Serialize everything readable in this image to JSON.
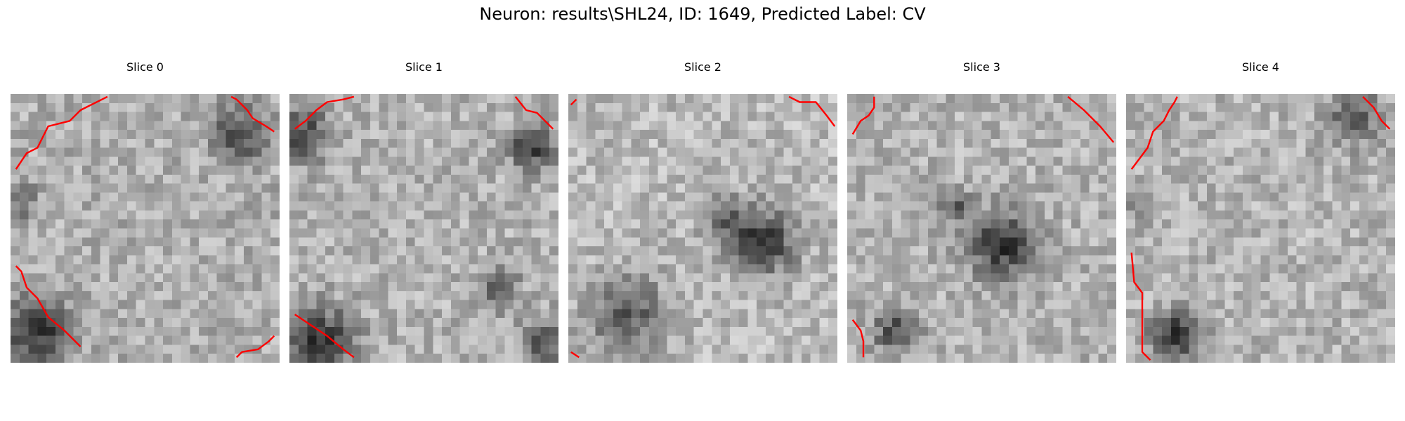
{
  "figure": {
    "suptitle": "Neuron: results\\SHL24, ID: 1649, Predicted Label: CV"
  },
  "panels": [
    {
      "title": "Slice 0",
      "seed": 11,
      "base_gray": 175,
      "dark_spots": [
        [
          0.03,
          0.4,
          0.07,
          0.25
        ],
        [
          0.1,
          0.88,
          0.12,
          0.5
        ],
        [
          0.85,
          0.15,
          0.1,
          0.4
        ]
      ],
      "contours": [
        [
          [
            0.02,
            0.28
          ],
          [
            0.04,
            0.25
          ],
          [
            0.06,
            0.22
          ],
          [
            0.1,
            0.2
          ],
          [
            0.14,
            0.12
          ],
          [
            0.22,
            0.1
          ],
          [
            0.26,
            0.06
          ],
          [
            0.3,
            0.04
          ],
          [
            0.34,
            0.02
          ],
          [
            0.36,
            0.01
          ]
        ],
        [
          [
            0.02,
            0.64
          ],
          [
            0.04,
            0.66
          ],
          [
            0.06,
            0.72
          ],
          [
            0.1,
            0.76
          ],
          [
            0.14,
            0.83
          ],
          [
            0.2,
            0.88
          ],
          [
            0.26,
            0.94
          ]
        ],
        [
          [
            0.82,
            0.01
          ],
          [
            0.84,
            0.02
          ],
          [
            0.88,
            0.06
          ],
          [
            0.9,
            0.09
          ],
          [
            0.95,
            0.12
          ],
          [
            0.98,
            0.14
          ]
        ],
        [
          [
            0.84,
            0.98
          ],
          [
            0.86,
            0.96
          ],
          [
            0.92,
            0.95
          ],
          [
            0.96,
            0.92
          ],
          [
            0.98,
            0.9
          ]
        ]
      ]
    },
    {
      "title": "Slice 1",
      "seed": 23,
      "base_gray": 178,
      "dark_spots": [
        [
          0.05,
          0.15,
          0.1,
          0.4
        ],
        [
          0.12,
          0.92,
          0.12,
          0.5
        ],
        [
          0.9,
          0.2,
          0.08,
          0.45
        ],
        [
          0.78,
          0.73,
          0.07,
          0.35
        ],
        [
          0.95,
          0.92,
          0.08,
          0.4
        ]
      ],
      "contours": [
        [
          [
            0.02,
            0.13
          ],
          [
            0.06,
            0.1
          ],
          [
            0.1,
            0.06
          ],
          [
            0.14,
            0.03
          ],
          [
            0.2,
            0.02
          ],
          [
            0.24,
            0.01
          ]
        ],
        [
          [
            0.02,
            0.82
          ],
          [
            0.08,
            0.86
          ],
          [
            0.14,
            0.9
          ],
          [
            0.2,
            0.95
          ],
          [
            0.24,
            0.98
          ]
        ],
        [
          [
            0.84,
            0.01
          ],
          [
            0.88,
            0.06
          ],
          [
            0.92,
            0.07
          ],
          [
            0.95,
            0.1
          ],
          [
            0.98,
            0.13
          ]
        ]
      ]
    },
    {
      "title": "Slice 2",
      "seed": 37,
      "base_gray": 185,
      "dark_spots": [
        [
          0.72,
          0.55,
          0.12,
          0.5
        ],
        [
          0.58,
          0.45,
          0.08,
          0.3
        ],
        [
          0.22,
          0.82,
          0.14,
          0.35
        ]
      ],
      "contours": [
        [
          [
            0.01,
            0.04
          ],
          [
            0.03,
            0.02
          ]
        ],
        [
          [
            0.82,
            0.01
          ],
          [
            0.86,
            0.03
          ],
          [
            0.92,
            0.03
          ],
          [
            0.96,
            0.08
          ],
          [
            0.99,
            0.12
          ]
        ],
        [
          [
            0.01,
            0.96
          ],
          [
            0.04,
            0.98
          ]
        ]
      ]
    },
    {
      "title": "Slice 3",
      "seed": 53,
      "base_gray": 178,
      "dark_spots": [
        [
          0.58,
          0.56,
          0.12,
          0.5
        ],
        [
          0.4,
          0.42,
          0.06,
          0.3
        ],
        [
          0.18,
          0.88,
          0.08,
          0.4
        ]
      ],
      "contours": [
        [
          [
            0.02,
            0.15
          ],
          [
            0.05,
            0.1
          ],
          [
            0.08,
            0.08
          ],
          [
            0.1,
            0.05
          ],
          [
            0.1,
            0.01
          ]
        ],
        [
          [
            0.82,
            0.01
          ],
          [
            0.88,
            0.06
          ],
          [
            0.94,
            0.12
          ],
          [
            0.99,
            0.18
          ]
        ],
        [
          [
            0.02,
            0.84
          ],
          [
            0.05,
            0.88
          ],
          [
            0.06,
            0.92
          ],
          [
            0.06,
            0.98
          ]
        ]
      ]
    },
    {
      "title": "Slice 4",
      "seed": 71,
      "base_gray": 180,
      "dark_spots": [
        [
          0.18,
          0.9,
          0.09,
          0.5
        ],
        [
          0.85,
          0.08,
          0.1,
          0.35
        ],
        [
          0.06,
          0.4,
          0.06,
          0.2
        ]
      ],
      "contours": [
        [
          [
            0.02,
            0.28
          ],
          [
            0.05,
            0.24
          ],
          [
            0.08,
            0.2
          ],
          [
            0.1,
            0.14
          ],
          [
            0.14,
            0.1
          ],
          [
            0.16,
            0.06
          ],
          [
            0.18,
            0.03
          ],
          [
            0.19,
            0.01
          ]
        ],
        [
          [
            0.02,
            0.59
          ],
          [
            0.03,
            0.7
          ],
          [
            0.06,
            0.74
          ],
          [
            0.06,
            0.96
          ],
          [
            0.09,
            0.99
          ]
        ],
        [
          [
            0.88,
            0.01
          ],
          [
            0.92,
            0.05
          ],
          [
            0.95,
            0.1
          ],
          [
            0.98,
            0.13
          ]
        ]
      ]
    }
  ]
}
